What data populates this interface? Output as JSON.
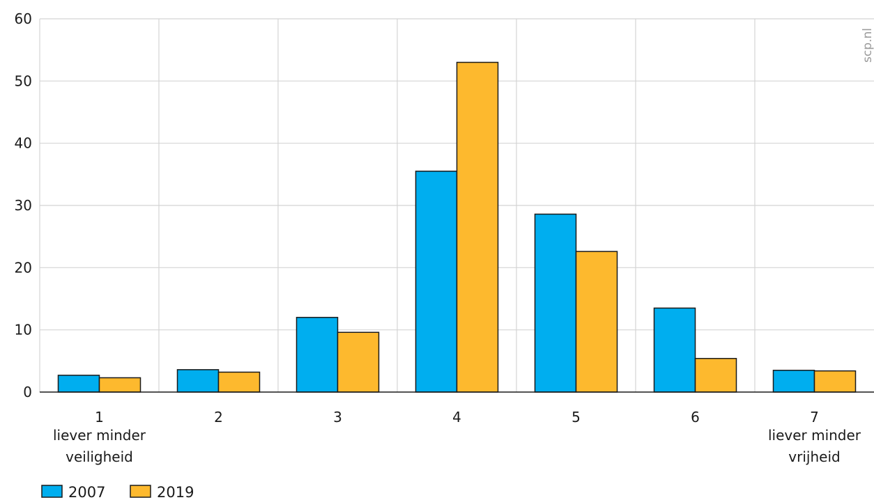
{
  "chart_data": {
    "type": "bar",
    "categories": [
      "1",
      "2",
      "3",
      "4",
      "5",
      "6",
      "7"
    ],
    "category_sublabels": [
      [
        "liever minder",
        "veiligheid"
      ],
      [],
      [],
      [],
      [],
      [],
      [
        "liever minder",
        "vrijheid"
      ]
    ],
    "series": [
      {
        "name": "2007",
        "color": "#00aeef",
        "values": [
          2.7,
          3.6,
          12.0,
          35.5,
          28.6,
          13.5,
          3.5
        ]
      },
      {
        "name": "2019",
        "color": "#fdb92e",
        "values": [
          2.3,
          3.2,
          9.6,
          53.0,
          22.6,
          5.4,
          3.4
        ]
      }
    ],
    "ylim": [
      0,
      60
    ],
    "yticks": [
      0,
      10,
      20,
      30,
      40,
      50,
      60
    ],
    "title": "",
    "xlabel": "",
    "ylabel": "",
    "grid": true,
    "legend_position": "bottom-left",
    "source": "scp.nl"
  }
}
